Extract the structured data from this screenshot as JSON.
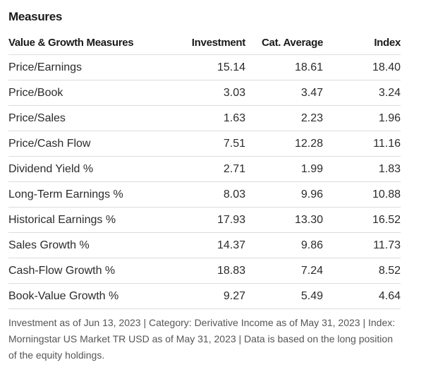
{
  "section": {
    "title": "Measures"
  },
  "table": {
    "headers": {
      "label": "Value & Growth Measures",
      "investment": "Investment",
      "category": "Cat. Average",
      "index": "Index"
    },
    "rows": [
      {
        "label": "Price/Earnings",
        "investment": "15.14",
        "category": "18.61",
        "index": "18.40"
      },
      {
        "label": "Price/Book",
        "investment": "3.03",
        "category": "3.47",
        "index": "3.24"
      },
      {
        "label": "Price/Sales",
        "investment": "1.63",
        "category": "2.23",
        "index": "1.96"
      },
      {
        "label": "Price/Cash Flow",
        "investment": "7.51",
        "category": "12.28",
        "index": "11.16"
      },
      {
        "label": "Dividend Yield %",
        "investment": "2.71",
        "category": "1.99",
        "index": "1.83"
      },
      {
        "label": "Long-Term Earnings %",
        "investment": "8.03",
        "category": "9.96",
        "index": "10.88"
      },
      {
        "label": "Historical Earnings %",
        "investment": "17.93",
        "category": "13.30",
        "index": "16.52"
      },
      {
        "label": "Sales Growth %",
        "investment": "14.37",
        "category": "9.86",
        "index": "11.73"
      },
      {
        "label": "Cash-Flow Growth %",
        "investment": "18.83",
        "category": "7.24",
        "index": "8.52"
      },
      {
        "label": "Book-Value Growth %",
        "investment": "9.27",
        "category": "5.49",
        "index": "4.64"
      }
    ]
  },
  "footnote": {
    "text": "Investment as of Jun 13, 2023 | Category: Derivative Income as of May 31, 2023 | Index: Morningstar US Market TR USD as of May 31, 2023 | Data is based on the long position of the equity holdings."
  }
}
